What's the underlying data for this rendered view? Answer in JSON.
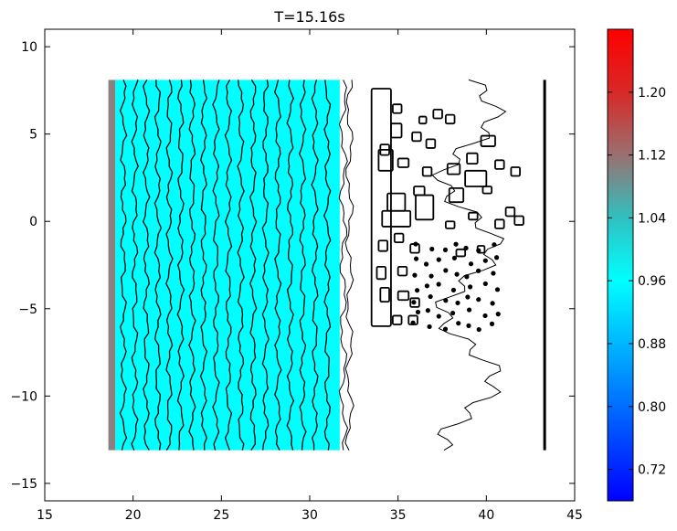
{
  "chart_data": {
    "type": "heatmap",
    "title": "T=15.16s",
    "xlabel": "",
    "ylabel": "",
    "xlim": [
      15,
      45
    ],
    "ylim": [
      -16,
      11
    ],
    "x_ticks": [
      15,
      20,
      25,
      30,
      35,
      40,
      45
    ],
    "x_tick_labels": [
      "15",
      "20",
      "25",
      "30",
      "35",
      "40",
      "45"
    ],
    "y_ticks": [
      10,
      5,
      0,
      -5,
      -10,
      -15
    ],
    "y_tick_labels": [
      "10",
      "5",
      "0",
      "−5",
      "−10",
      "−15"
    ],
    "domain": {
      "x": [
        18.6,
        43.3
      ],
      "y": [
        -13.1,
        8.1
      ]
    },
    "wet_region": {
      "x": [
        19.0,
        31.7
      ],
      "y": [
        -13.1,
        8.1
      ],
      "value": 0.98,
      "color": "#00ffff"
    },
    "boundary_strip": {
      "x": [
        18.6,
        19.0
      ],
      "y": [
        -13.1,
        8.1
      ],
      "value": 1.12,
      "color": "#8a8080"
    },
    "wave_crest_x": [
      19.45,
      20.1,
      20.75,
      21.4,
      22.05,
      22.7,
      23.35,
      24.0,
      24.7,
      25.4,
      26.1,
      26.8,
      27.5,
      28.2,
      28.9,
      29.6,
      30.3,
      31.0
    ],
    "shoreline_x": 31.9,
    "right_wall_x": 43.3,
    "buildings": [
      [
        34.7,
        6.2,
        0.5,
        0.5
      ],
      [
        36.2,
        5.6,
        0.4,
        0.4
      ],
      [
        37.0,
        5.9,
        0.5,
        0.5
      ],
      [
        37.7,
        5.6,
        0.5,
        0.5
      ],
      [
        34.6,
        4.8,
        0.6,
        0.8
      ],
      [
        35.8,
        4.6,
        0.5,
        0.5
      ],
      [
        36.6,
        4.2,
        0.5,
        0.5
      ],
      [
        39.7,
        4.3,
        0.8,
        0.6
      ],
      [
        34.0,
        3.8,
        0.5,
        0.6
      ],
      [
        35.0,
        3.1,
        0.6,
        0.5
      ],
      [
        36.4,
        2.6,
        0.5,
        0.5
      ],
      [
        38.9,
        3.3,
        0.6,
        0.6
      ],
      [
        40.5,
        3.0,
        0.5,
        0.5
      ],
      [
        41.4,
        2.6,
        0.5,
        0.5
      ],
      [
        37.8,
        2.7,
        0.7,
        0.6
      ],
      [
        38.8,
        2.0,
        1.2,
        0.9
      ],
      [
        33.9,
        2.9,
        0.8,
        1.2
      ],
      [
        35.9,
        1.5,
        0.6,
        0.5
      ],
      [
        37.9,
        1.1,
        0.8,
        0.8
      ],
      [
        39.8,
        1.6,
        0.5,
        0.4
      ],
      [
        34.4,
        0.6,
        1.0,
        1.0
      ],
      [
        36.0,
        0.1,
        1.0,
        1.4
      ],
      [
        34.1,
        -0.3,
        1.6,
        0.9
      ],
      [
        37.7,
        -0.4,
        0.5,
        0.4
      ],
      [
        39.0,
        0.1,
        0.5,
        0.4
      ],
      [
        40.5,
        -0.4,
        0.5,
        0.5
      ],
      [
        41.1,
        0.3,
        0.5,
        0.5
      ],
      [
        41.6,
        -0.2,
        0.5,
        0.5
      ],
      [
        33.9,
        -1.7,
        0.5,
        0.6
      ],
      [
        34.8,
        -1.2,
        0.5,
        0.5
      ],
      [
        35.7,
        -1.8,
        0.5,
        0.5
      ],
      [
        38.3,
        -2.0,
        0.5,
        0.4
      ],
      [
        39.5,
        -1.8,
        0.4,
        0.4
      ],
      [
        33.8,
        -3.3,
        0.5,
        0.7
      ],
      [
        35.0,
        -3.1,
        0.5,
        0.5
      ],
      [
        34.0,
        -4.6,
        0.5,
        0.8
      ],
      [
        35.0,
        -4.5,
        0.6,
        0.5
      ],
      [
        35.7,
        -4.9,
        0.5,
        0.5
      ],
      [
        34.7,
        -5.9,
        0.5,
        0.5
      ],
      [
        35.6,
        -5.9,
        0.5,
        0.5
      ]
    ],
    "colorbar": {
      "vmin": 0.68,
      "vmax": 1.28,
      "ticks": [
        0.72,
        0.8,
        0.88,
        0.96,
        1.04,
        1.12,
        1.2
      ],
      "tick_labels": [
        "0.72",
        "0.80",
        "0.88",
        "0.96",
        "1.04",
        "1.12",
        "1.20"
      ],
      "gradient": [
        {
          "v": 0.68,
          "color": "#0000ff"
        },
        {
          "v": 0.96,
          "color": "#00ffff"
        },
        {
          "v": 1.04,
          "color": "#30c0c0"
        },
        {
          "v": 1.12,
          "color": "#9a7070"
        },
        {
          "v": 1.2,
          "color": "#d82828"
        },
        {
          "v": 1.28,
          "color": "#ff0000"
        }
      ]
    },
    "grid": false,
    "legend": "colorbar-right"
  }
}
